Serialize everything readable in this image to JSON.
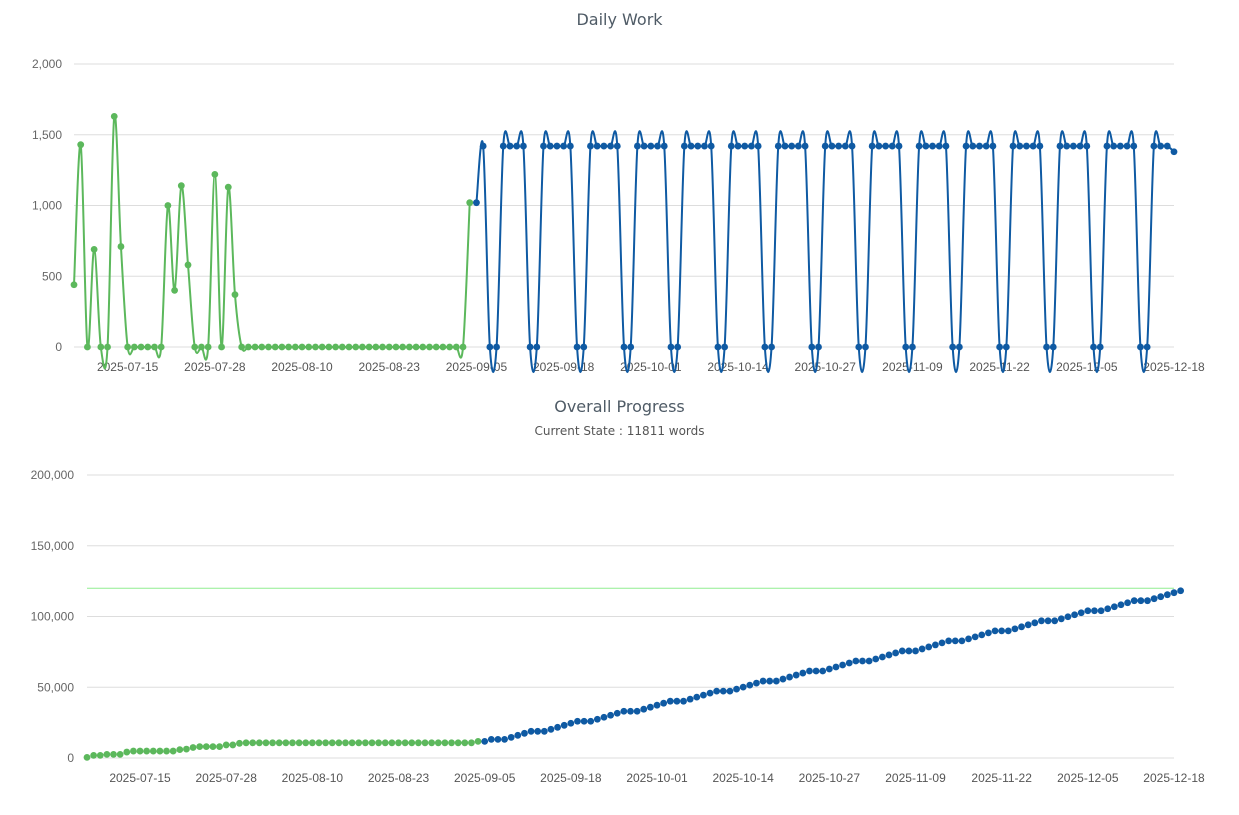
{
  "charts": [
    {
      "title": "Daily Work",
      "subtitle": "",
      "chart_data": {
        "type": "line",
        "title": "Daily Work",
        "xlabel": "",
        "ylabel": "",
        "ylim": [
          0,
          2000
        ],
        "yticks": [
          0,
          500,
          1000,
          1500,
          2000
        ],
        "ytick_labels": [
          "0",
          "500",
          "1,000",
          "1,500",
          "2,000"
        ],
        "x_start": "2025-07-07",
        "x_end": "2025-12-18",
        "xtick_labels": [
          "2025-07-15",
          "2025-07-28",
          "2025-08-10",
          "2025-08-23",
          "2025-09-05",
          "2025-09-18",
          "2025-10-01",
          "2025-10-14",
          "2025-10-27",
          "2025-11-09",
          "2025-11-22",
          "2025-12-05",
          "2025-12-18"
        ],
        "grid": true,
        "series": [
          {
            "color": "#5cb85c",
            "start": "2025-07-07",
            "values": [
              440,
              1430,
              0,
              690,
              0,
              0,
              1630,
              710,
              0,
              0,
              0,
              0,
              0,
              0,
              1000,
              400,
              1140,
              580,
              0,
              0,
              0,
              1220,
              0,
              1130,
              370,
              0,
              0,
              0,
              0,
              0,
              0,
              0,
              0,
              0,
              0,
              0,
              0,
              0,
              0,
              0,
              0,
              0,
              0,
              0,
              0,
              0,
              0,
              0,
              0,
              0,
              0,
              0,
              0,
              0,
              0,
              0,
              0,
              0,
              0,
              1020
            ]
          },
          {
            "color": "#0f5aa3",
            "start": "2025-09-05",
            "values": [
              1020,
              1420,
              0,
              0,
              1420,
              1420,
              1420,
              1420,
              0,
              0,
              1420,
              1420,
              1420,
              1420,
              1420,
              0,
              0,
              1420,
              1420,
              1420,
              1420,
              1420,
              0,
              0,
              1420,
              1420,
              1420,
              1420,
              1420,
              0,
              0,
              1420,
              1420,
              1420,
              1420,
              1420,
              0,
              0,
              1420,
              1420,
              1420,
              1420,
              1420,
              0,
              0,
              1420,
              1420,
              1420,
              1420,
              1420,
              0,
              0,
              1420,
              1420,
              1420,
              1420,
              1420,
              0,
              0,
              1420,
              1420,
              1420,
              1420,
              1420,
              0,
              0,
              1420,
              1420,
              1420,
              1420,
              1420,
              0,
              0,
              1420,
              1420,
              1420,
              1420,
              1420,
              0,
              0,
              1420,
              1420,
              1420,
              1420,
              1420,
              0,
              0,
              1420,
              1420,
              1420,
              1420,
              1420,
              0,
              0,
              1420,
              1420,
              1420,
              1420,
              1420,
              0,
              0,
              1420,
              1420,
              1420,
              1380
            ]
          }
        ]
      }
    },
    {
      "title": "Overall Progress",
      "subtitle": "Current State : 11811 words",
      "chart_data": {
        "type": "scatter",
        "title": "Overall Progress",
        "subtitle": "Current State : 11811 words",
        "xlabel": "",
        "ylabel": "",
        "ylim": [
          0,
          200000
        ],
        "yticks": [
          0,
          50000,
          100000,
          150000,
          200000
        ],
        "ytick_labels": [
          "0",
          "50,000",
          "100,000",
          "150,000",
          "200,000"
        ],
        "x_start": "2025-07-07",
        "x_end": "2025-12-18",
        "xtick_labels": [
          "2025-07-15",
          "2025-07-28",
          "2025-08-10",
          "2025-08-23",
          "2025-09-05",
          "2025-09-18",
          "2025-10-01",
          "2025-10-14",
          "2025-10-27",
          "2025-11-09",
          "2025-11-22",
          "2025-12-05",
          "2025-12-18"
        ],
        "grid": true,
        "target_line": {
          "value": 120000,
          "color": "#90ee90"
        },
        "series": [
          {
            "color": "#5cb85c",
            "start": "2025-07-07",
            "values": [
              440,
              1870,
              1870,
              2560,
              2560,
              2560,
              4190,
              4900,
              4900,
              4900,
              4900,
              4900,
              4900,
              4900,
              5900,
              6300,
              7440,
              8020,
              8020,
              8020,
              8020,
              9240,
              9240,
              10370,
              10740,
              10740,
              10740,
              10740,
              10740,
              10740,
              10740,
              10740,
              10740,
              10740,
              10740,
              10740,
              10740,
              10740,
              10740,
              10740,
              10740,
              10740,
              10740,
              10740,
              10740,
              10740,
              10740,
              10740,
              10740,
              10740,
              10740,
              10740,
              10740,
              10740,
              10740,
              10740,
              10740,
              10740,
              10740,
              11760
            ]
          },
          {
            "color": "#0f5aa3",
            "start": "2025-09-05",
            "values": [
              11760,
              13180,
              13180,
              13180,
              14600,
              16020,
              17440,
              18860,
              18860,
              18860,
              20280,
              21700,
              23120,
              24540,
              25960,
              25960,
              25960,
              27380,
              28800,
              30220,
              31640,
              33060,
              33060,
              33060,
              34480,
              35900,
              37320,
              38740,
              40160,
              40160,
              40160,
              41580,
              43000,
              44420,
              45840,
              47260,
              47260,
              47260,
              48680,
              50100,
              51520,
              52940,
              54360,
              54360,
              54360,
              55780,
              57200,
              58620,
              60040,
              61460,
              61460,
              61460,
              62880,
              64300,
              65720,
              67140,
              68560,
              68560,
              68560,
              69980,
              71400,
              72820,
              74240,
              75660,
              75660,
              75660,
              77080,
              78500,
              79920,
              81340,
              82760,
              82760,
              82760,
              84180,
              85600,
              87020,
              88440,
              89860,
              89860,
              89860,
              91280,
              92700,
              94120,
              95540,
              96960,
              96960,
              96960,
              98380,
              99800,
              101220,
              102640,
              104060,
              104060,
              104060,
              105480,
              106900,
              108320,
              109740,
              111160,
              111160,
              111160,
              112580,
              114000,
              115420,
              116840,
              118220
            ]
          }
        ]
      }
    }
  ]
}
